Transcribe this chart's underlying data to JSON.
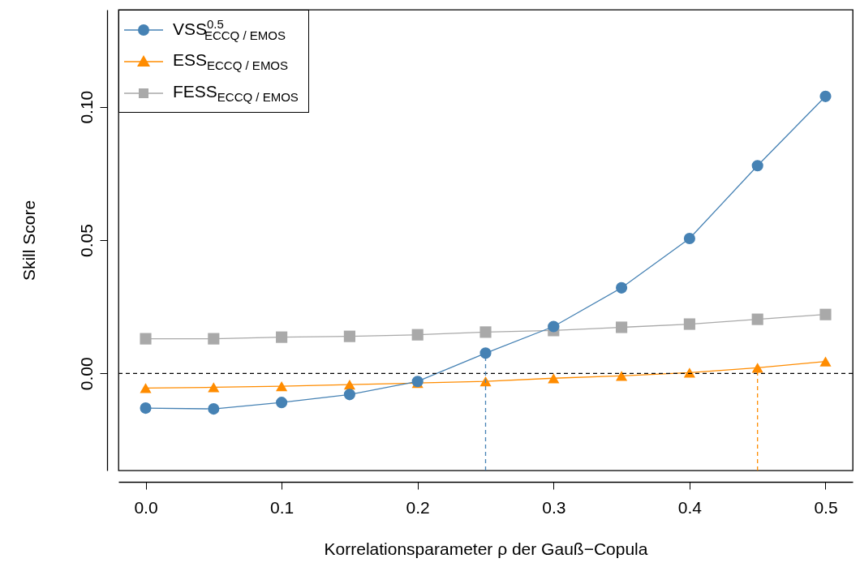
{
  "chart_data": {
    "type": "line",
    "xlabel": "Korrelationsparameter ρ der Gauß−Copula",
    "ylabel": "Skill Score",
    "x": [
      0,
      0.05,
      0.1,
      0.15,
      0.2,
      0.25,
      0.3,
      0.35,
      0.4,
      0.45,
      0.5
    ],
    "series": [
      {
        "name": "VSS$^{0.5}$$_{ECCQ / EMOS}$",
        "color": "#4682b4",
        "marker": "circle",
        "values": [
          -0.013,
          -0.0133,
          -0.0109,
          -0.0079,
          -0.003,
          0.0076,
          0.0176,
          0.0321,
          0.0506,
          0.0779,
          0.1039
        ]
      },
      {
        "name": "ESS$_{ECCQ / EMOS}$",
        "color": "#ff8c00",
        "marker": "triangle",
        "values": [
          -0.0055,
          -0.0052,
          -0.0048,
          -0.0042,
          -0.0036,
          -0.003,
          -0.0018,
          -0.0009,
          0.0003,
          0.0021,
          0.0045
        ]
      },
      {
        "name": "FESS$_{ECCQ / EMOS}$",
        "color": "#a9a9a9",
        "marker": "square",
        "values": [
          0.013,
          0.013,
          0.0136,
          0.0139,
          0.0145,
          0.0155,
          0.0161,
          0.0173,
          0.0185,
          0.0203,
          0.0221
        ]
      }
    ],
    "xlim": [
      -0.02,
      0.52
    ],
    "ylim": [
      -0.0364,
      0.1364
    ],
    "xticks": [
      {
        "value": 0,
        "label": "0.0"
      },
      {
        "value": 0.1,
        "label": "0.1"
      },
      {
        "value": 0.2,
        "label": "0.2"
      },
      {
        "value": 0.3,
        "label": "0.3"
      },
      {
        "value": 0.4,
        "label": "0.4"
      },
      {
        "value": 0.5,
        "label": "0.5"
      }
    ],
    "yticks": [
      {
        "value": 0,
        "label": "0.00"
      },
      {
        "value": 0.05,
        "label": "0.05"
      },
      {
        "value": 0.1,
        "label": "0.10"
      }
    ],
    "ref_lines": [
      {
        "axis": "y",
        "value": 0,
        "color": "#000000",
        "line_style": "dashed"
      },
      {
        "axis": "x",
        "value": 0.25,
        "color": "#4682b4",
        "line_style": "dashed"
      },
      {
        "axis": "x",
        "value": 0.45,
        "color": "#ff8c00",
        "line_style": "dashed"
      }
    ],
    "grid": false,
    "legend": "top left",
    "line_style": "solid"
  }
}
